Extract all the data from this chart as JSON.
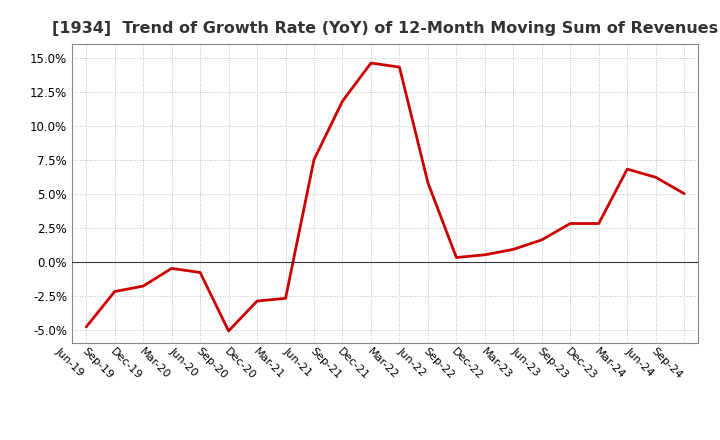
{
  "title": "[1934]  Trend of Growth Rate (YoY) of 12-Month Moving Sum of Revenues",
  "title_fontsize": 11.5,
  "title_fontweight": "bold",
  "line_color": "#cc0000",
  "line_width": 2.0,
  "background_color": "#ffffff",
  "plot_bg_color": "#ffffff",
  "grid_color": "#aaaaaa",
  "ylim": [
    -0.06,
    0.16
  ],
  "yticks": [
    -0.05,
    -0.025,
    0.0,
    0.025,
    0.05,
    0.075,
    0.1,
    0.125,
    0.15
  ],
  "x_labels": [
    "Jun-19",
    "Sep-19",
    "Dec-19",
    "Mar-20",
    "Jun-20",
    "Sep-20",
    "Dec-20",
    "Mar-21",
    "Jun-21",
    "Sep-21",
    "Dec-21",
    "Mar-22",
    "Jun-22",
    "Sep-22",
    "Dec-22",
    "Mar-23",
    "Jun-23",
    "Sep-23",
    "Dec-23",
    "Mar-24",
    "Jun-24",
    "Sep-24"
  ],
  "data_points": [
    [
      "Jun-19",
      -0.048
    ],
    [
      "Sep-19",
      -0.022
    ],
    [
      "Dec-19",
      -0.018
    ],
    [
      "Mar-20",
      -0.005
    ],
    [
      "Jun-20",
      -0.008
    ],
    [
      "Sep-20",
      -0.051
    ],
    [
      "Dec-20",
      -0.029
    ],
    [
      "Mar-21",
      -0.027
    ],
    [
      "Jun-21",
      0.075
    ],
    [
      "Sep-21",
      0.118
    ],
    [
      "Dec-21",
      0.146
    ],
    [
      "Mar-22",
      0.143
    ],
    [
      "Jun-22",
      0.058
    ],
    [
      "Sep-22",
      0.003
    ],
    [
      "Dec-22",
      0.005
    ],
    [
      "Mar-23",
      0.009
    ],
    [
      "Jun-23",
      0.016
    ],
    [
      "Sep-23",
      0.028
    ],
    [
      "Dec-23",
      0.028
    ],
    [
      "Mar-24",
      0.068
    ],
    [
      "Jun-24",
      0.062
    ],
    [
      "Sep-24",
      0.05
    ]
  ]
}
